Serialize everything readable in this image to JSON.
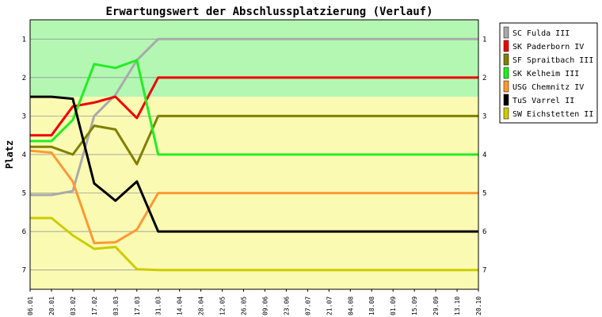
{
  "chart_data": {
    "type": "line",
    "title": "Erwartungswert der Abschlussplatzierung (Verlauf)",
    "ylabel": "Platz",
    "xlabel": "",
    "ylim": [
      0.5,
      7.5
    ],
    "y_inverted": true,
    "yticks": [
      1,
      2,
      3,
      4,
      5,
      6,
      7
    ],
    "grid": "horizontal",
    "legend_position": "right-outside",
    "zones": [
      {
        "from": 0.5,
        "to": 2.5,
        "color": "#b3f7b3"
      },
      {
        "from": 2.5,
        "to": 7.5,
        "color": "#fafab3"
      }
    ],
    "x": [
      "06.01",
      "20.01",
      "03.02",
      "17.02",
      "03.03",
      "17.03",
      "31.03",
      "14.04",
      "28.04",
      "12.05",
      "26.05",
      "09.06",
      "23.06",
      "07.07",
      "21.07",
      "04.08",
      "18.08",
      "01.09",
      "15.09",
      "29.09",
      "13.10",
      "20.10"
    ],
    "series": [
      {
        "name": "SC Fulda III",
        "color": "#aaaaaa",
        "values": [
          5.05,
          5.05,
          4.95,
          3.0,
          2.45,
          1.55,
          1.0,
          1.0,
          1.0,
          1.0,
          1.0,
          1.0,
          1.0,
          1.0,
          1.0,
          1.0,
          1.0,
          1.0,
          1.0,
          1.0,
          1.0,
          1.0
        ]
      },
      {
        "name": "SK Paderborn IV",
        "color": "#ee0000",
        "values": [
          3.5,
          3.5,
          2.75,
          2.65,
          2.5,
          3.05,
          2.0,
          2.0,
          2.0,
          2.0,
          2.0,
          2.0,
          2.0,
          2.0,
          2.0,
          2.0,
          2.0,
          2.0,
          2.0,
          2.0,
          2.0,
          2.0
        ]
      },
      {
        "name": "SF Spraitbach III",
        "color": "#808000",
        "values": [
          3.8,
          3.8,
          4.0,
          3.25,
          3.35,
          4.25,
          3.0,
          3.0,
          3.0,
          3.0,
          3.0,
          3.0,
          3.0,
          3.0,
          3.0,
          3.0,
          3.0,
          3.0,
          3.0,
          3.0,
          3.0,
          3.0
        ]
      },
      {
        "name": "SK Kelheim III",
        "color": "#22ee22",
        "values": [
          3.65,
          3.65,
          3.1,
          1.65,
          1.75,
          1.55,
          4.0,
          4.0,
          4.0,
          4.0,
          4.0,
          4.0,
          4.0,
          4.0,
          4.0,
          4.0,
          4.0,
          4.0,
          4.0,
          4.0,
          4.0,
          4.0
        ]
      },
      {
        "name": "USG Chemnitz IV",
        "color": "#ff9933",
        "values": [
          3.9,
          3.95,
          4.7,
          6.3,
          6.28,
          5.95,
          5.0,
          5.0,
          5.0,
          5.0,
          5.0,
          5.0,
          5.0,
          5.0,
          5.0,
          5.0,
          5.0,
          5.0,
          5.0,
          5.0,
          5.0,
          5.0
        ]
      },
      {
        "name": "TuS Varrel II",
        "color": "#000000",
        "values": [
          2.5,
          2.5,
          2.55,
          4.75,
          5.2,
          4.7,
          6.0,
          6.0,
          6.0,
          6.0,
          6.0,
          6.0,
          6.0,
          6.0,
          6.0,
          6.0,
          6.0,
          6.0,
          6.0,
          6.0,
          6.0,
          6.0
        ]
      },
      {
        "name": "SW Eichstetten II",
        "color": "#cccc00",
        "values": [
          5.65,
          5.65,
          6.1,
          6.45,
          6.4,
          6.98,
          7.0,
          7.0,
          7.0,
          7.0,
          7.0,
          7.0,
          7.0,
          7.0,
          7.0,
          7.0,
          7.0,
          7.0,
          7.0,
          7.0,
          7.0,
          7.0
        ]
      }
    ]
  }
}
